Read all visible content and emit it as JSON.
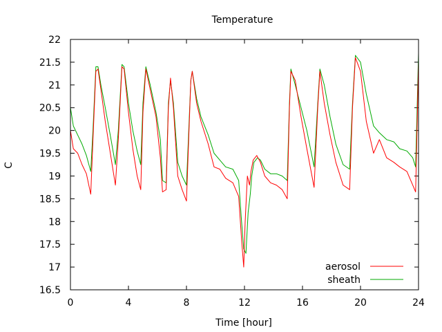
{
  "chart_data": {
    "type": "line",
    "title": "Temperature",
    "xlabel": "Time [hour]",
    "ylabel": "C",
    "xlim": [
      0,
      24
    ],
    "ylim": [
      16.5,
      22
    ],
    "xticks": [
      0,
      4,
      8,
      12,
      16,
      20,
      24
    ],
    "yticks": [
      16.5,
      17,
      17.5,
      18,
      18.5,
      19,
      19.5,
      20,
      20.5,
      21,
      21.5,
      22
    ],
    "grid": false,
    "legend_position": "bottom-right",
    "series": [
      {
        "name": "aerosol",
        "color": "#ff0000",
        "x": [
          0,
          0.2,
          0.5,
          0.8,
          1.1,
          1.4,
          1.55,
          1.75,
          1.9,
          2.1,
          2.4,
          2.8,
          3.1,
          3.3,
          3.55,
          3.7,
          4.0,
          4.3,
          4.6,
          4.85,
          5.0,
          5.2,
          5.5,
          5.9,
          6.2,
          6.35,
          6.6,
          6.75,
          6.9,
          7.1,
          7.4,
          7.7,
          8.0,
          8.3,
          8.4,
          8.7,
          9.0,
          9.5,
          9.9,
          10.3,
          10.7,
          11.2,
          11.6,
          11.8,
          11.95,
          12.05,
          12.2,
          12.35,
          12.45,
          12.6,
          12.85,
          13.1,
          13.4,
          13.8,
          14.2,
          14.6,
          14.95,
          15.1,
          15.2,
          15.5,
          15.9,
          16.3,
          16.8,
          17.05,
          17.2,
          17.5,
          17.9,
          18.3,
          18.8,
          19.25,
          19.45,
          19.65,
          20.0,
          20.4,
          20.9,
          21.3,
          21.8,
          22.3,
          22.7,
          23.2,
          23.6,
          23.8,
          24.0
        ],
        "y": [
          20.0,
          19.6,
          19.5,
          19.25,
          19.05,
          18.6,
          19.8,
          21.3,
          21.35,
          20.9,
          20.2,
          19.4,
          18.8,
          19.8,
          21.4,
          21.35,
          20.4,
          19.6,
          19.0,
          18.7,
          20.4,
          21.35,
          20.9,
          20.3,
          19.4,
          18.65,
          18.7,
          20.5,
          21.15,
          20.5,
          19.0,
          18.7,
          18.45,
          21.1,
          21.3,
          20.6,
          20.2,
          19.7,
          19.2,
          19.15,
          18.95,
          18.85,
          18.55,
          17.6,
          17.0,
          18.0,
          19.0,
          18.8,
          19.1,
          19.35,
          19.45,
          19.3,
          19.0,
          18.85,
          18.8,
          18.7,
          18.5,
          20.5,
          21.3,
          21.1,
          20.3,
          19.6,
          18.75,
          20.5,
          21.3,
          20.6,
          19.9,
          19.3,
          18.8,
          18.7,
          20.5,
          21.6,
          21.3,
          20.2,
          19.5,
          19.8,
          19.4,
          19.3,
          19.2,
          19.1,
          18.8,
          18.65,
          21.5
        ]
      },
      {
        "name": "sheath",
        "color": "#00aa00",
        "x": [
          0,
          0.2,
          0.5,
          0.8,
          1.1,
          1.4,
          1.55,
          1.75,
          1.9,
          2.1,
          2.4,
          2.8,
          3.1,
          3.3,
          3.55,
          3.7,
          4.0,
          4.3,
          4.6,
          4.85,
          5.0,
          5.2,
          5.5,
          5.9,
          6.2,
          6.35,
          6.6,
          6.75,
          6.9,
          7.1,
          7.4,
          7.7,
          8.0,
          8.3,
          8.4,
          8.7,
          9.0,
          9.5,
          9.9,
          10.3,
          10.7,
          11.2,
          11.6,
          11.8,
          11.95,
          12.1,
          12.25,
          12.4,
          12.5,
          12.65,
          12.9,
          13.1,
          13.4,
          13.8,
          14.2,
          14.6,
          14.95,
          15.1,
          15.2,
          15.5,
          15.9,
          16.3,
          16.8,
          17.05,
          17.2,
          17.5,
          17.9,
          18.3,
          18.8,
          19.25,
          19.45,
          19.65,
          20.0,
          20.4,
          20.9,
          21.3,
          21.8,
          22.3,
          22.7,
          23.2,
          23.6,
          23.8,
          24.0
        ],
        "y": [
          20.5,
          20.1,
          19.9,
          19.7,
          19.45,
          19.1,
          20.0,
          21.4,
          21.4,
          21.0,
          20.5,
          19.8,
          19.25,
          20.0,
          21.45,
          21.4,
          20.6,
          20.0,
          19.55,
          19.25,
          20.6,
          21.4,
          21.0,
          20.4,
          19.8,
          18.9,
          18.85,
          20.6,
          21.1,
          20.6,
          19.3,
          19.0,
          18.8,
          21.1,
          21.3,
          20.7,
          20.3,
          19.9,
          19.5,
          19.35,
          19.2,
          19.15,
          18.9,
          18.0,
          17.4,
          17.3,
          18.2,
          18.6,
          19.0,
          19.3,
          19.4,
          19.35,
          19.15,
          19.05,
          19.05,
          19.0,
          18.9,
          20.6,
          21.35,
          21.0,
          20.5,
          20.0,
          19.2,
          20.6,
          21.35,
          21.0,
          20.3,
          19.7,
          19.25,
          19.15,
          20.6,
          21.65,
          21.5,
          20.8,
          20.1,
          19.95,
          19.8,
          19.75,
          19.6,
          19.55,
          19.4,
          19.2,
          21.7
        ]
      }
    ]
  }
}
